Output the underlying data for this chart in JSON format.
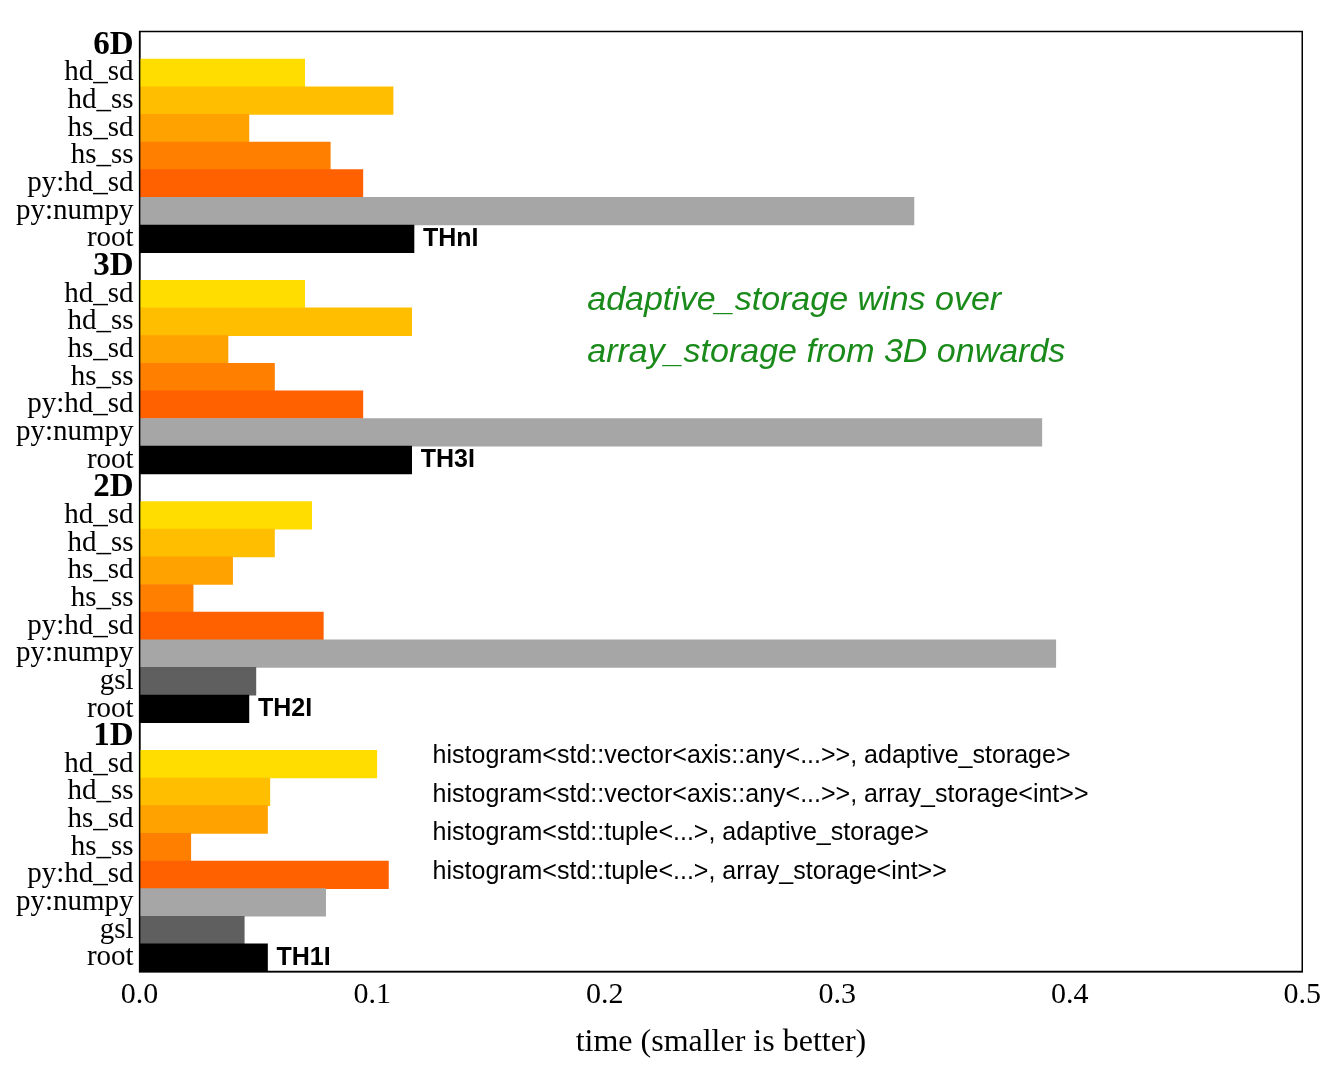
{
  "chart_data": {
    "type": "bar",
    "orientation": "horizontal",
    "xlabel": "time (smaller is better)",
    "categories": [
      "6D",
      "hd_sd",
      "hd_ss",
      "hs_sd",
      "hs_ss",
      "py:hd_sd",
      "py:numpy",
      "root",
      "3D",
      "hd_sd",
      "hd_ss",
      "hs_sd",
      "hs_ss",
      "py:hd_sd",
      "py:numpy",
      "root",
      "2D",
      "hd_sd",
      "hd_ss",
      "hs_sd",
      "hs_ss",
      "py:hd_sd",
      "py:numpy",
      "gsl",
      "root",
      "1D",
      "hd_sd",
      "hd_ss",
      "hs_sd",
      "hs_ss",
      "py:hd_sd",
      "py:numpy",
      "gsl",
      "root"
    ],
    "values": [
      null,
      0.071,
      0.109,
      0.047,
      0.082,
      0.096,
      0.333,
      0.118,
      null,
      0.071,
      0.117,
      0.038,
      0.058,
      0.096,
      0.388,
      0.117,
      null,
      0.074,
      0.058,
      0.04,
      0.023,
      0.079,
      0.394,
      0.05,
      0.047,
      null,
      0.102,
      0.056,
      0.055,
      0.022,
      0.107,
      0.08,
      0.045,
      0.055
    ],
    "colors": [
      null,
      "#ffdd00",
      "#ffbf00",
      "#ffa200",
      "#ff8000",
      "#ff6000",
      "#a6a6a6",
      "#000000",
      null,
      "#ffdd00",
      "#ffbf00",
      "#ffa200",
      "#ff8000",
      "#ff6000",
      "#a6a6a6",
      "#000000",
      null,
      "#ffdd00",
      "#ffbf00",
      "#ffa200",
      "#ff8000",
      "#ff6000",
      "#a6a6a6",
      "#5f5f5f",
      "#000000",
      null,
      "#ffdd00",
      "#ffbf00",
      "#ffa200",
      "#ff8000",
      "#ff6000",
      "#a6a6a6",
      "#5f5f5f",
      "#000000"
    ],
    "xlim": [
      0,
      0.5
    ],
    "xticks": [
      {
        "value": 0,
        "label": "0.0"
      },
      0.1,
      0.2,
      0.3,
      0.4,
      0.5
    ],
    "annotations": [
      "THnI",
      "TH3I",
      "TH2I",
      "TH1I",
      "adaptive_storage wins over array_storage from 3D onwards",
      "histogram<std::vector<axis::any<...>>, adaptive_storage>",
      "histogram<std::vector<axis::any<...>>, array_storage<int>>",
      "histogram<std::tuple<...>, adaptive_storage>",
      "histogram<std::tuple<...>, array_storage<int>>"
    ]
  }
}
